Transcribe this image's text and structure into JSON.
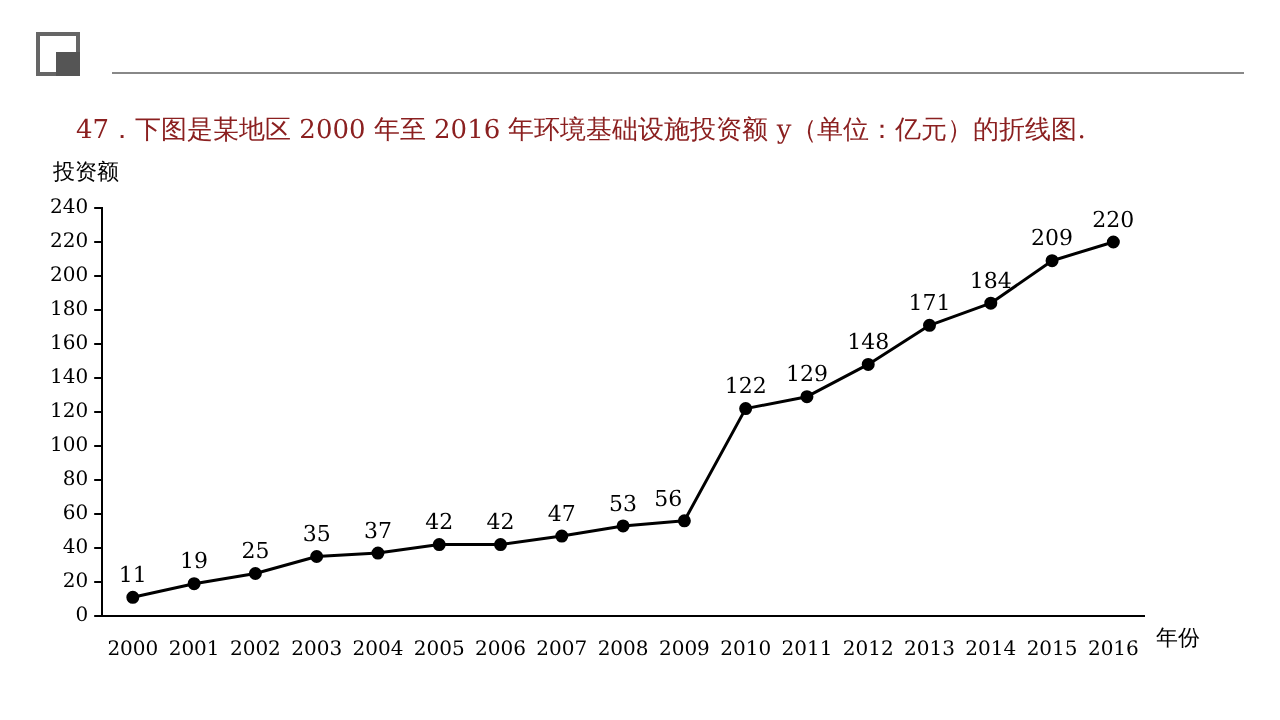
{
  "chart_data": {
    "type": "line",
    "title": "47．下图是某地区 2000 年至 2016 年环境基础设施投资额 y（单位：亿元）的折线图.",
    "xlabel": "年份",
    "ylabel": "投资额",
    "categories": [
      "2000",
      "2001",
      "2002",
      "2003",
      "2004",
      "2005",
      "2006",
      "2007",
      "2008",
      "2009",
      "2010",
      "2011",
      "2012",
      "2013",
      "2014",
      "2015",
      "2016"
    ],
    "series": [
      {
        "color": "#000000",
        "values": [
          11,
          19,
          25,
          35,
          37,
          42,
          42,
          47,
          53,
          56,
          122,
          129,
          148,
          171,
          184,
          209,
          220
        ]
      }
    ],
    "ylim": [
      0,
      240
    ],
    "yticks": [
      0,
      20,
      40,
      60,
      80,
      100,
      120,
      140,
      160,
      180,
      200,
      220,
      240
    ],
    "data_labels": true,
    "grid": false,
    "legend": false,
    "marker": "circle",
    "line_style": "solid"
  }
}
